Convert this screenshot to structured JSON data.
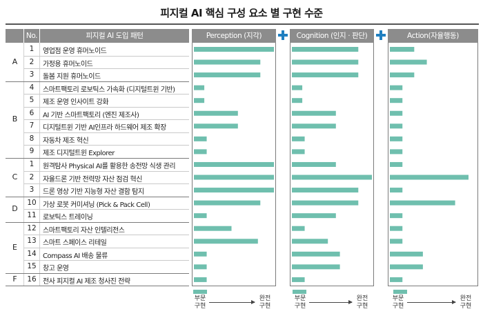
{
  "title": "피지컬 AI 핵심 구성 요소 별 구현 수준",
  "headers": {
    "group": "",
    "no": "No.",
    "pattern": "피지컬 AI 도입 패턴",
    "perception": "Perception (지각)",
    "cognition": "Cognition (인지 · 판단)",
    "action": "Action(자율행동)"
  },
  "scale": {
    "low": "부문\n구현",
    "high": "완전\n구현"
  },
  "colors": {
    "bar": "#6fbfae",
    "header": "#8c8c8c",
    "plus": "#1f7fc0"
  },
  "chart_data": {
    "type": "bar",
    "orientation": "horizontal",
    "value_range": [
      0,
      1
    ],
    "rows": [
      {
        "group": "A",
        "no": "1",
        "label": "영업점 운영 휴머노이드",
        "perception": 1.0,
        "cognition": 0.83,
        "action": 0.31
      },
      {
        "group": "A",
        "no": "2",
        "label": "가정용 휴머노이드",
        "perception": 0.83,
        "cognition": 0.83,
        "action": 0.47
      },
      {
        "group": "A",
        "no": "3",
        "label": "돌봄 지원 휴머노이드",
        "perception": 0.83,
        "cognition": 0.83,
        "action": 0.31
      },
      {
        "group": "B",
        "no": "4",
        "label": "스마트팩토리 로보틱스 가속화 (디지털트윈 기반)",
        "perception": 0.13,
        "cognition": 0.13,
        "action": 0.16
      },
      {
        "group": "B",
        "no": "5",
        "label": "제조 운영 인사이트 강화",
        "perception": 0.13,
        "cognition": 0.13,
        "action": 0.16
      },
      {
        "group": "B",
        "no": "6",
        "label": "AI 기반 스마트팩토리 (엔진 제조사)",
        "perception": 0.55,
        "cognition": 0.55,
        "action": 0.16
      },
      {
        "group": "B",
        "no": "7",
        "label": "디지털트윈 기반 AI인프라 하드웨어 제조 확장",
        "perception": 0.55,
        "cognition": 0.55,
        "action": 0.16
      },
      {
        "group": "B",
        "no": "8",
        "label": "자동차 제조 혁신",
        "perception": 0.16,
        "cognition": 0.16,
        "action": 0.16
      },
      {
        "group": "B",
        "no": "9",
        "label": "제조 디지털트윈 Explorer",
        "perception": 0.16,
        "cognition": 0.16,
        "action": 0.16
      },
      {
        "group": "C",
        "no": "1",
        "label": "원격탐사 Physical AI를 활용한 송전망 식생 관리",
        "perception": 1.0,
        "cognition": 0.55,
        "action": 0.16
      },
      {
        "group": "C",
        "no": "2",
        "label": "자율드론 기반 전력망 자산 점검 혁신",
        "perception": 1.0,
        "cognition": 1.0,
        "action": 1.0
      },
      {
        "group": "C",
        "no": "3",
        "label": "드론 영상 기반 지능형 자산 결함 탐지",
        "perception": 1.0,
        "cognition": 0.83,
        "action": 0.16
      },
      {
        "group": "D",
        "no": "10",
        "label": "가상 로봇 커미셔닝 (Pick & Pack Cell)",
        "perception": 0.83,
        "cognition": 0.83,
        "action": 0.83
      },
      {
        "group": "D",
        "no": "11",
        "label": "로보틱스 트레이닝",
        "perception": 0.16,
        "cognition": 0.55,
        "action": 0.16
      },
      {
        "group": "E",
        "no": "12",
        "label": "스마트팩토리 자산 인텔리전스",
        "perception": 0.47,
        "cognition": 0.16,
        "action": 0.16
      },
      {
        "group": "E",
        "no": "13",
        "label": "스마트 스페이스 리테일",
        "perception": 0.8,
        "cognition": 0.45,
        "action": 0.16
      },
      {
        "group": "E",
        "no": "14",
        "label": "Compass AI 배송 물류",
        "perception": 0.16,
        "cognition": 0.6,
        "action": 0.42
      },
      {
        "group": "E",
        "no": "15",
        "label": "창고 운영",
        "perception": 0.16,
        "cognition": 0.6,
        "action": 0.42
      },
      {
        "group": "F",
        "no": "16",
        "label": "전사 피지컬 AI 제조 청사진 전략",
        "perception": 0.16,
        "cognition": 0.16,
        "action": 0.16
      }
    ]
  }
}
